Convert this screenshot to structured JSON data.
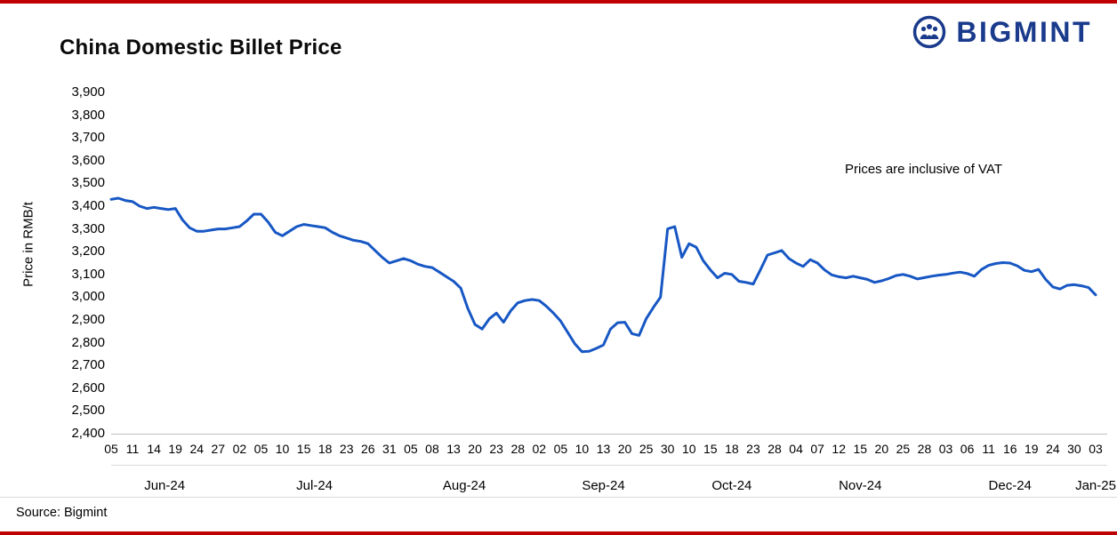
{
  "page": {
    "title": "China Domestic Billet Price",
    "logo_text": "BIGMINT",
    "source": "Source: Bigmint",
    "accent_red": "#C00000",
    "brand_blue": "#1A3A8C",
    "line_blue": "#1757C4"
  },
  "chart_data": {
    "type": "line",
    "title": "China Domestic Billet Price",
    "ylabel": "Price in RMB/t",
    "annotation": "Prices are inclusive of VAT",
    "ylim": [
      2400,
      3900
    ],
    "ytick_step": 100,
    "grid": false,
    "legend": false,
    "series_name": "China domestic billet price (RMB/t, inclusive of VAT)",
    "x_ticks": [
      "05",
      "11",
      "14",
      "19",
      "24",
      "27",
      "02",
      "05",
      "10",
      "15",
      "18",
      "23",
      "26",
      "31",
      "05",
      "08",
      "13",
      "20",
      "23",
      "28",
      "02",
      "05",
      "10",
      "13",
      "20",
      "25",
      "30",
      "10",
      "15",
      "18",
      "23",
      "28",
      "04",
      "07",
      "12",
      "15",
      "20",
      "25",
      "28",
      "03",
      "06",
      "11",
      "16",
      "19",
      "24",
      "30",
      "03"
    ],
    "month_groups": [
      {
        "label": "Jun-24",
        "from": 0,
        "to": 5
      },
      {
        "label": "Jul-24",
        "from": 6,
        "to": 13
      },
      {
        "label": "Aug-24",
        "from": 14,
        "to": 19
      },
      {
        "label": "Sep-24",
        "from": 20,
        "to": 26
      },
      {
        "label": "Oct-24",
        "from": 27,
        "to": 31
      },
      {
        "label": "Nov-24",
        "from": 32,
        "to": 38
      },
      {
        "label": "Dec-24",
        "from": 39,
        "to": 45
      },
      {
        "label": "Jan-25",
        "from": 46,
        "to": 46
      }
    ],
    "values": [
      3430,
      3435,
      3425,
      3420,
      3400,
      3390,
      3395,
      3390,
      3385,
      3390,
      3340,
      3305,
      3290,
      3290,
      3295,
      3300,
      3300,
      3305,
      3310,
      3335,
      3365,
      3365,
      3330,
      3285,
      3270,
      3290,
      3310,
      3320,
      3315,
      3310,
      3305,
      3285,
      3270,
      3260,
      3250,
      3245,
      3235,
      3205,
      3175,
      3150,
      3160,
      3170,
      3160,
      3145,
      3135,
      3130,
      3110,
      3090,
      3070,
      3040,
      2950,
      2880,
      2860,
      2905,
      2930,
      2890,
      2940,
      2975,
      2985,
      2990,
      2985,
      2960,
      2930,
      2895,
      2845,
      2795,
      2760,
      2762,
      2775,
      2790,
      2860,
      2888,
      2890,
      2840,
      2832,
      2905,
      2955,
      3000,
      3300,
      3310,
      3175,
      3235,
      3220,
      3160,
      3120,
      3085,
      3105,
      3100,
      3070,
      3065,
      3058,
      3120,
      3185,
      3195,
      3205,
      3170,
      3150,
      3135,
      3165,
      3150,
      3120,
      3098,
      3090,
      3085,
      3092,
      3085,
      3078,
      3065,
      3072,
      3082,
      3095,
      3100,
      3092,
      3080,
      3086,
      3092,
      3097,
      3100,
      3106,
      3110,
      3104,
      3092,
      3122,
      3140,
      3148,
      3152,
      3150,
      3138,
      3118,
      3112,
      3122,
      3078,
      3045,
      3036,
      3052,
      3055,
      3050,
      3042,
      3010
    ]
  }
}
